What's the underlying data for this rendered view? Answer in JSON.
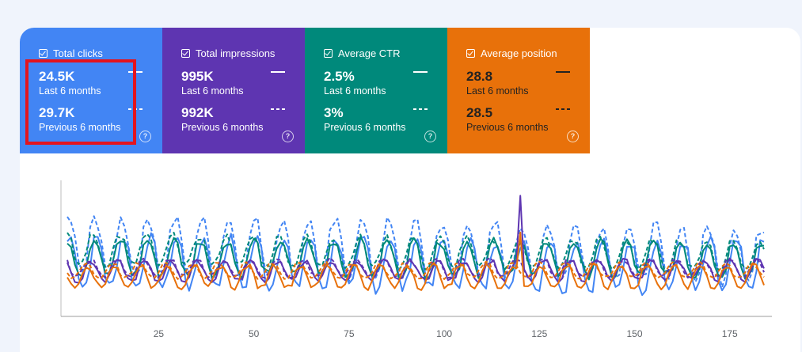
{
  "cards": [
    {
      "title": "Total clicks",
      "color": "#4285f4",
      "value_current": "24.5K",
      "label_current": "Last 6 months",
      "value_previous": "29.7K",
      "label_previous": "Previous 6 months",
      "help": "?"
    },
    {
      "title": "Total impressions",
      "color": "#5e35b1",
      "value_current": "995K",
      "label_current": "Last 6 months",
      "value_previous": "992K",
      "label_previous": "Previous 6 months",
      "help": "?"
    },
    {
      "title": "Average CTR",
      "color": "#00897b",
      "value_current": "2.5%",
      "label_current": "Last 6 months",
      "value_previous": "3%",
      "label_previous": "Previous 6 months",
      "help": "?"
    },
    {
      "title": "Average position",
      "color": "#e8710a",
      "value_current": "28.8",
      "label_current": "Last 6 months",
      "value_previous": "28.5",
      "label_previous": "Previous 6 months",
      "help": "?"
    }
  ],
  "chart_data": {
    "type": "line",
    "x_range": [
      1,
      184
    ],
    "x_ticks": [
      "25",
      "50",
      "75",
      "100",
      "125",
      "150",
      "175"
    ],
    "x_tick_values": [
      25,
      50,
      75,
      100,
      125,
      150,
      175
    ],
    "y_range": [
      0,
      100
    ],
    "grid": false,
    "series": [
      {
        "color": "#4285f4",
        "style": "solid",
        "mean": 38,
        "amp": 20,
        "phase": 0.0,
        "decay": 0.1
      },
      {
        "color": "#4285f4",
        "style": "dashed",
        "mean": 52,
        "amp": 22,
        "phase": 0.35,
        "decay": 0.15
      },
      {
        "color": "#00897b",
        "style": "solid",
        "mean": 42,
        "amp": 14,
        "phase": 0.6,
        "decay": 0.05
      },
      {
        "color": "#00897b",
        "style": "dashed",
        "mean": 48,
        "amp": 12,
        "phase": 0.9,
        "decay": 0.1
      },
      {
        "color": "#5e35b1",
        "style": "solid",
        "mean": 30,
        "amp": 8,
        "phase": 1.3,
        "decay": -0.05,
        "spike_x": 120,
        "spike_y": 92
      },
      {
        "color": "#5e35b1",
        "style": "dashed",
        "mean": 33,
        "amp": 7,
        "phase": 1.6,
        "decay": 0.0
      },
      {
        "color": "#e8710a",
        "style": "solid",
        "mean": 26,
        "amp": 9,
        "phase": 2.2,
        "decay": 0.0,
        "spike_x": 120,
        "spike_y": 62
      },
      {
        "color": "#e8710a",
        "style": "dashed",
        "mean": 31,
        "amp": 6,
        "phase": 2.6,
        "decay": 0.0
      }
    ]
  }
}
